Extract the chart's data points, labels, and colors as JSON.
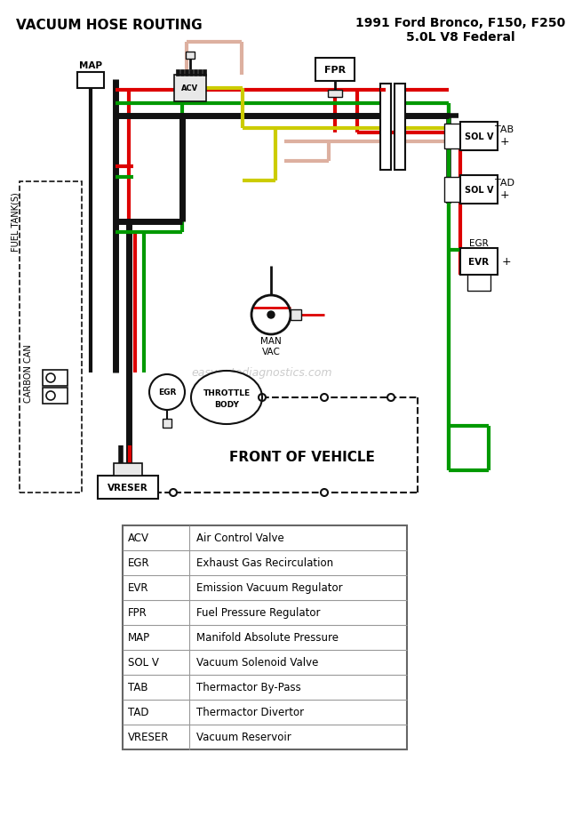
{
  "title_left": "VACUUM HOSE ROUTING",
  "title_right": "1991 Ford Bronco, F150, F250\n5.0L V8 Federal",
  "bg_color": "#ffffff",
  "legend_rows": [
    [
      "ACV",
      "Air Control Valve"
    ],
    [
      "EGR",
      "Exhaust Gas Recirculation"
    ],
    [
      "EVR",
      "Emission Vacuum Regulator"
    ],
    [
      "FPR",
      "Fuel Pressure Regulator"
    ],
    [
      "MAP",
      "Manifold Absolute Pressure"
    ],
    [
      "SOL V",
      "Vacuum Solenoid Valve"
    ],
    [
      "TAB",
      "Thermactor By-Pass"
    ],
    [
      "TAD",
      "Thermactor Divertor"
    ],
    [
      "VRESER",
      "Vacuum Reservoir"
    ]
  ],
  "watermark": "easyautodiagnostics.com",
  "red": "#dd0000",
  "green": "#009900",
  "black": "#111111",
  "yellow": "#cccc00",
  "pink": "#ddb0a0"
}
